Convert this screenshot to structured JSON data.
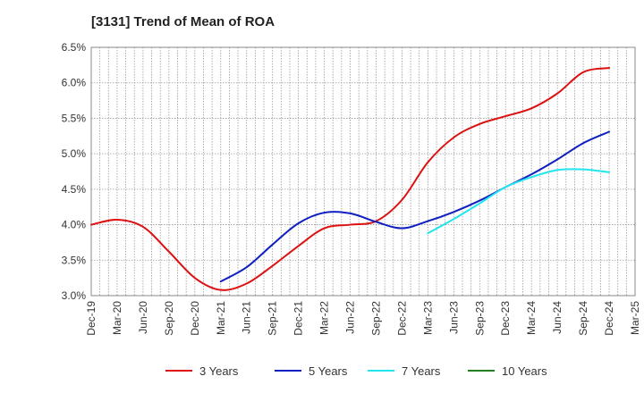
{
  "chart_data": {
    "type": "line",
    "title": "[3131]  Trend of Mean of ROA",
    "xlabel": "",
    "ylabel": "",
    "x": [
      "Dec-19",
      "Mar-20",
      "Jun-20",
      "Sep-20",
      "Dec-20",
      "Mar-21",
      "Jun-21",
      "Sep-21",
      "Dec-21",
      "Mar-22",
      "Jun-22",
      "Sep-22",
      "Dec-22",
      "Mar-23",
      "Jun-23",
      "Sep-23",
      "Dec-23",
      "Mar-24",
      "Jun-24",
      "Sep-24",
      "Dec-24",
      "Mar-25"
    ],
    "ylim": [
      3.0,
      6.5
    ],
    "yticks": [
      "3.0%",
      "3.5%",
      "4.0%",
      "4.5%",
      "5.0%",
      "5.5%",
      "6.0%",
      "6.5%"
    ],
    "grid": true,
    "legend_position": "bottom",
    "colors": {
      "3 Years": "#dd1111",
      "5 Years": "#1020c0",
      "7 Years": "#22e5ee",
      "10 Years": "#208020"
    },
    "series": [
      {
        "name": "3 Years",
        "values": [
          4.0,
          4.07,
          3.97,
          3.62,
          3.25,
          3.08,
          3.17,
          3.42,
          3.7,
          3.95,
          4.0,
          4.05,
          4.35,
          4.88,
          5.23,
          5.42,
          5.53,
          5.64,
          5.85,
          6.15,
          6.21,
          null
        ]
      },
      {
        "name": "5 Years",
        "values": [
          null,
          null,
          null,
          null,
          null,
          3.2,
          3.4,
          3.72,
          4.02,
          4.17,
          4.16,
          4.04,
          3.95,
          4.05,
          4.18,
          4.34,
          4.53,
          4.71,
          4.92,
          5.15,
          5.31,
          null
        ]
      },
      {
        "name": "7 Years",
        "values": [
          null,
          null,
          null,
          null,
          null,
          null,
          null,
          null,
          null,
          null,
          null,
          null,
          null,
          3.88,
          4.08,
          4.3,
          4.53,
          4.67,
          4.77,
          4.78,
          4.74,
          null
        ]
      },
      {
        "name": "10 Years",
        "values": [
          null,
          null,
          null,
          null,
          null,
          null,
          null,
          null,
          null,
          null,
          null,
          null,
          null,
          null,
          null,
          null,
          null,
          null,
          null,
          null,
          null,
          null
        ]
      }
    ]
  }
}
